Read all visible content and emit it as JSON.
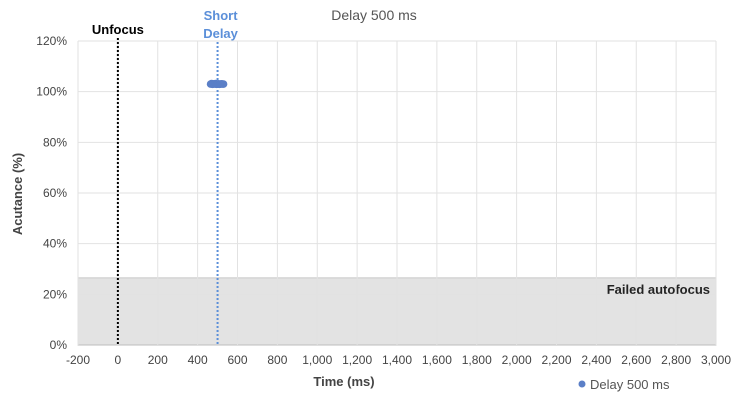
{
  "chart_data": {
    "type": "scatter",
    "title": "Delay 500 ms",
    "xlabel": "Time (ms)",
    "ylabel": "Acutance (%)",
    "xlim": [
      -200,
      3000
    ],
    "ylim": [
      0,
      120
    ],
    "x_ticks": [
      -200,
      0,
      200,
      400,
      600,
      800,
      1000,
      1200,
      1400,
      1600,
      1800,
      2000,
      2200,
      2400,
      2600,
      2800,
      3000
    ],
    "x_tick_labels": [
      "-200",
      "0",
      "200",
      "400",
      "600",
      "800",
      "1,000",
      "1,200",
      "1,400",
      "1,600",
      "1,800",
      "2,000",
      "2,200",
      "2,400",
      "2,600",
      "2,800",
      "3,000"
    ],
    "y_ticks": [
      0,
      20,
      40,
      60,
      80,
      100,
      120
    ],
    "y_tick_labels": [
      "0%",
      "20%",
      "40%",
      "60%",
      "80%",
      "100%",
      "120%"
    ],
    "grid": true,
    "legend_position": "bottom-right",
    "series": [
      {
        "name": "Delay 500 ms",
        "color": "#5b7fc7",
        "points": [
          {
            "x": 465,
            "y": 103
          },
          {
            "x": 470,
            "y": 103.2
          },
          {
            "x": 475,
            "y": 102.9
          },
          {
            "x": 480,
            "y": 103.1
          },
          {
            "x": 485,
            "y": 103
          },
          {
            "x": 490,
            "y": 103.2
          },
          {
            "x": 495,
            "y": 102.9
          },
          {
            "x": 500,
            "y": 103
          },
          {
            "x": 505,
            "y": 103.1
          },
          {
            "x": 510,
            "y": 102.9
          },
          {
            "x": 515,
            "y": 103
          },
          {
            "x": 520,
            "y": 103.1
          },
          {
            "x": 525,
            "y": 103
          },
          {
            "x": 530,
            "y": 103
          }
        ]
      }
    ],
    "annotations": {
      "unfocus": {
        "label": "Unfocus",
        "x": 0,
        "color": "#000000"
      },
      "short_delay": {
        "label_line1": "Short",
        "label_line2": "Delay",
        "x": 500,
        "color": "#5b8fd9"
      },
      "failed_band": {
        "label": "Failed autofocus",
        "y_from": 0,
        "y_to": 26.5,
        "fill": "#e3e3e3"
      }
    }
  }
}
